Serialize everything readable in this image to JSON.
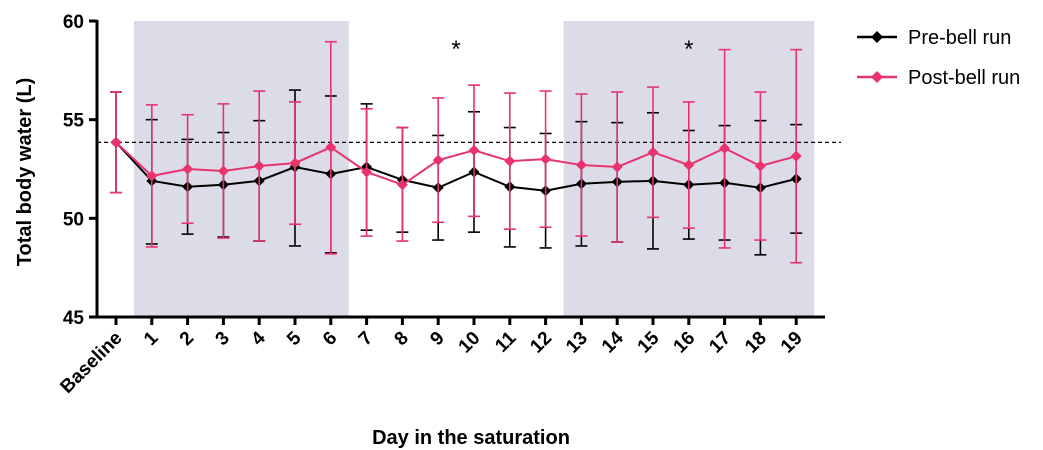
{
  "chart_data": {
    "type": "line",
    "title": "",
    "xlabel": "Day in the saturation",
    "ylabel": "Total body water (L)",
    "ylim": [
      45,
      60
    ],
    "yticks": [
      45,
      50,
      55,
      60
    ],
    "categories": [
      "Baseline",
      "1",
      "2",
      "3",
      "4",
      "5",
      "6",
      "7",
      "8",
      "9",
      "10",
      "11",
      "12",
      "13",
      "14",
      "15",
      "16",
      "17",
      "18",
      "19"
    ],
    "reference_line": {
      "y": 53.85,
      "style": "dashed"
    },
    "shaded_regions": [
      {
        "from": "1",
        "to": "6",
        "color": "#dcdce8"
      },
      {
        "from": "13",
        "to": "19",
        "color": "#dcdce8"
      }
    ],
    "annotations": [
      {
        "text": "*",
        "category": "9.5"
      },
      {
        "text": "*",
        "category": "16"
      }
    ],
    "legend": {
      "placement": "top-right"
    },
    "series": [
      {
        "name": "Pre-bell run",
        "color": "#000000",
        "marker": "diamond",
        "values": [
          53.85,
          51.9,
          51.6,
          51.7,
          51.9,
          52.6,
          52.25,
          52.6,
          51.95,
          51.55,
          52.35,
          51.6,
          51.4,
          51.75,
          51.85,
          51.9,
          51.7,
          51.8,
          51.55,
          52.0
        ],
        "upper": [
          56.4,
          55.0,
          54.0,
          54.35,
          54.95,
          56.5,
          56.2,
          55.8,
          54.6,
          54.2,
          55.4,
          54.6,
          54.3,
          54.9,
          54.85,
          55.35,
          54.45,
          54.7,
          54.95,
          54.75
        ],
        "lower": [
          51.3,
          48.7,
          49.2,
          49.05,
          48.85,
          48.6,
          48.25,
          49.4,
          49.3,
          48.9,
          49.3,
          48.55,
          48.5,
          48.6,
          48.8,
          48.45,
          48.95,
          48.9,
          48.15,
          49.25
        ]
      },
      {
        "name": "Post-bell run",
        "color": "#e8336d",
        "marker": "diamond",
        "values": [
          53.85,
          52.15,
          52.5,
          52.4,
          52.65,
          52.8,
          53.6,
          52.35,
          51.7,
          52.95,
          53.45,
          52.9,
          53.0,
          52.7,
          52.6,
          53.35,
          52.7,
          53.55,
          52.65,
          53.15
        ],
        "upper": [
          56.4,
          55.75,
          55.25,
          55.8,
          56.45,
          55.9,
          58.95,
          55.55,
          54.6,
          56.1,
          56.75,
          56.35,
          56.45,
          56.3,
          56.4,
          56.65,
          55.9,
          58.55,
          56.4,
          58.55
        ],
        "lower": [
          51.3,
          48.55,
          49.75,
          49.0,
          48.85,
          49.7,
          48.2,
          49.1,
          48.85,
          49.8,
          50.1,
          49.45,
          49.55,
          49.1,
          48.8,
          50.05,
          49.5,
          48.5,
          48.9,
          47.75
        ]
      }
    ]
  }
}
